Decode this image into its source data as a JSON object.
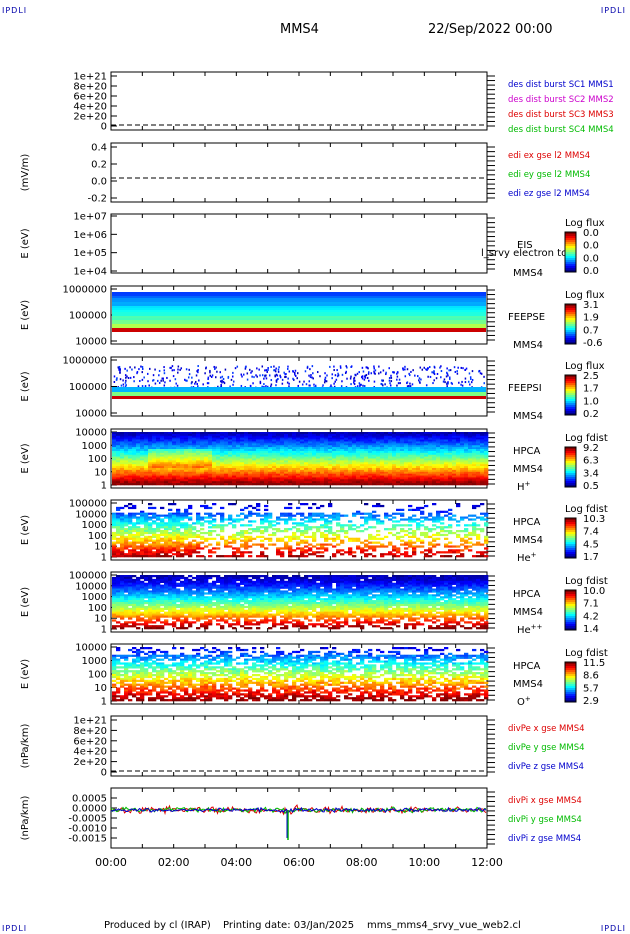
{
  "header": {
    "mission": "MMS4",
    "datetime": "22/Sep/2022 00:00"
  },
  "corner_label": "IPDLI",
  "footer": {
    "produced_by": "Produced by cl (IRAP)",
    "printing_date": "Printing date: 03/Jan/2025",
    "file": "mms_mms4_srvy_vue_web2.cl"
  },
  "x_axis": {
    "ticks": [
      "00:00",
      "02:00",
      "04:00",
      "06:00",
      "08:00",
      "10:00",
      "12:00"
    ],
    "range_hours": [
      0,
      12
    ]
  },
  "colors": {
    "blue": "#0000cc",
    "magenta": "#cc00cc",
    "red": "#dd0000",
    "green": "#00bb00"
  },
  "chart_data": [
    {
      "type": "line",
      "ylabel": "",
      "yticks": [
        "1e+21",
        "8e+20",
        "6e+20",
        "4e+20",
        "2e+20",
        "0"
      ],
      "series": [
        {
          "name": "des dist burst SC1 MMS1"
        },
        {
          "name": "des dist burst SC2 MMS2"
        },
        {
          "name": "des dist burst SC3 MMS3"
        },
        {
          "name": "des dist burst SC4 MMS4"
        }
      ]
    },
    {
      "type": "line",
      "ylabel": "(mV/m)",
      "yticks": [
        "0.4",
        "0.2",
        "0.0",
        "-0.2"
      ],
      "series": [
        {
          "name": "edi ex gse l2 MMS4"
        },
        {
          "name": "edi ey gse l2 MMS4"
        },
        {
          "name": "edi ez gse l2 MMS4"
        }
      ]
    },
    {
      "type": "heatmap",
      "ylabel": "E (eV)",
      "yticks": [
        "1e+07",
        "1e+06",
        "1e+05",
        "1e+04"
      ],
      "instrument": "EIS",
      "mission": "MMS4",
      "overlay_text": "l_srvy electron to",
      "colorbar_title": "Log flux",
      "colorbar_ticks": [
        "0.0",
        "0.0",
        "0.0",
        "0.0"
      ]
    },
    {
      "type": "heatmap",
      "ylabel": "E (eV)",
      "yticks": [
        "1000000",
        "100000",
        "10000"
      ],
      "instrument": "FEEPSE",
      "mission": "MMS4",
      "colorbar_title": "Log flux",
      "colorbar_ticks": [
        "3.1",
        "1.9",
        "0.7",
        "-0.6"
      ]
    },
    {
      "type": "heatmap",
      "ylabel": "E (eV)",
      "yticks": [
        "1000000",
        "100000",
        "10000"
      ],
      "instrument": "FEEPSI",
      "mission": "MMS4",
      "colorbar_title": "Log flux",
      "colorbar_ticks": [
        "2.5",
        "1.7",
        "1.0",
        "0.2"
      ]
    },
    {
      "type": "heatmap",
      "ylabel": "E (eV)",
      "yticks": [
        "10000",
        "1000",
        "100",
        "10",
        "1"
      ],
      "instrument": "HPCA",
      "mission": "MMS4",
      "species": "H",
      "charge": "+",
      "colorbar_title": "Log fdist",
      "colorbar_ticks": [
        "9.2",
        "6.3",
        "3.4",
        "0.5"
      ]
    },
    {
      "type": "heatmap",
      "ylabel": "E (eV)",
      "yticks": [
        "100000",
        "10000",
        "1000",
        "100",
        "10",
        "1"
      ],
      "instrument": "HPCA",
      "mission": "MMS4",
      "species": "He",
      "charge": "+",
      "colorbar_title": "Log fdist",
      "colorbar_ticks": [
        "10.3",
        "7.4",
        "4.5",
        "1.7"
      ]
    },
    {
      "type": "heatmap",
      "ylabel": "E (eV)",
      "yticks": [
        "100000",
        "10000",
        "1000",
        "100",
        "10",
        "1"
      ],
      "instrument": "HPCA",
      "mission": "MMS4",
      "species": "He",
      "charge": "++",
      "colorbar_title": "Log fdist",
      "colorbar_ticks": [
        "10.0",
        "7.1",
        "4.2",
        "1.4"
      ]
    },
    {
      "type": "heatmap",
      "ylabel": "E (eV)",
      "yticks": [
        "10000",
        "1000",
        "100",
        "10",
        "1"
      ],
      "instrument": "HPCA",
      "mission": "MMS4",
      "species": "O",
      "charge": "+",
      "colorbar_title": "Log fdist",
      "colorbar_ticks": [
        "11.5",
        "8.6",
        "5.7",
        "2.9"
      ]
    },
    {
      "type": "line",
      "ylabel": "(nPa/km)",
      "yticks": [
        "1e+21",
        "8e+20",
        "6e+20",
        "4e+20",
        "2e+20",
        "0"
      ],
      "series": [
        {
          "name": "divPe x gse MMS4"
        },
        {
          "name": "divPe y gse MMS4"
        },
        {
          "name": "divPe z gse MMS4"
        }
      ]
    },
    {
      "type": "line",
      "ylabel": "(nPa/km)",
      "yticks": [
        "0.0005",
        "0.0000",
        "-0.0005",
        "-0.0010",
        "-0.0015"
      ],
      "series": [
        {
          "name": "divPi x gse MMS4"
        },
        {
          "name": "divPi y gse MMS4"
        },
        {
          "name": "divPi z gse MMS4"
        }
      ]
    }
  ]
}
